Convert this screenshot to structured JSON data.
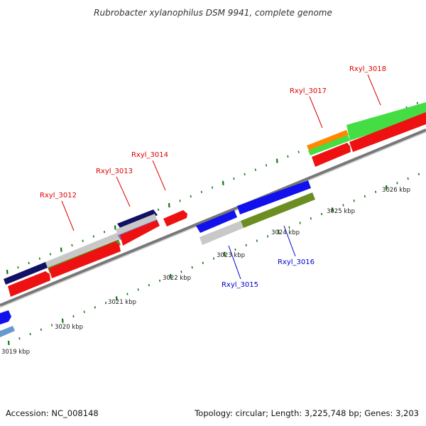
{
  "title": "Rubrobacter xylanophilus DSM 9941, complete genome",
  "footer": {
    "accession": "Accession: NC_008148",
    "summary": "Topology: circular; Length: 3,225,748 bp; Genes: 3,203"
  },
  "colors": {
    "red": "#ee1111",
    "blue": "#1111ee",
    "green": "#44dd44",
    "olive": "#6b8e23",
    "orange": "#ff8800",
    "navy": "#111177",
    "grey": "#cccccc",
    "tick": "#117711",
    "backbone": "#999999",
    "label_red": "#dd0000",
    "label_blue": "#0000cc"
  },
  "scale_labels": [
    "3019 kbp",
    "3020 kbp",
    "3021 kbp",
    "3022 kbp",
    "3023 kbp",
    "3024 kbp",
    "3025 kbp",
    "3026 kbp"
  ],
  "gene_labels": [
    {
      "text": "Rxyl_3012",
      "color": "label_red"
    },
    {
      "text": "Rxyl_3013",
      "color": "label_red"
    },
    {
      "text": "Rxyl_3014",
      "color": "label_red"
    },
    {
      "text": "Rxyl_3015",
      "color": "label_blue"
    },
    {
      "text": "Rxyl_3016",
      "color": "label_blue"
    },
    {
      "text": "Rxyl_3017",
      "color": "label_red"
    },
    {
      "text": "Rxyl_3018",
      "color": "label_red"
    }
  ]
}
